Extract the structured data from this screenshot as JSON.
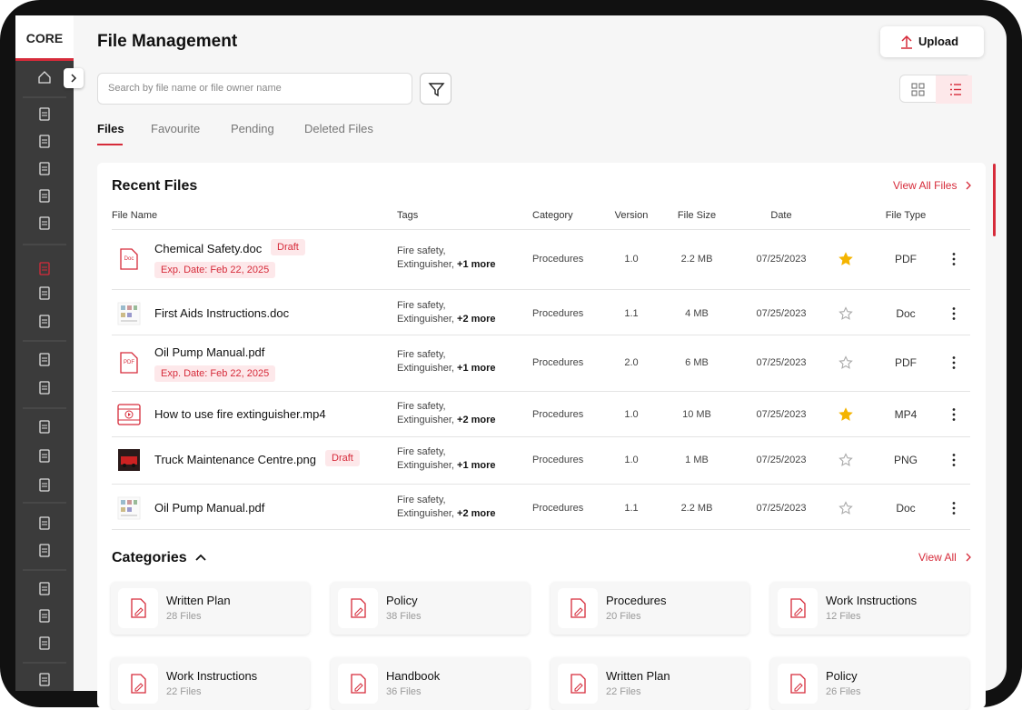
{
  "logo": "CORE",
  "header": {
    "title": "File Management",
    "upload": "Upload",
    "search_placeholder": "Search by file name or file owner name"
  },
  "tabs": {
    "items": [
      "Files",
      "Favourite",
      "Pending",
      "Deleted Files"
    ],
    "active": 0
  },
  "recent": {
    "title": "Recent Files",
    "view_all": "View All Files",
    "columns": [
      "File Name",
      "Tags",
      "Category",
      "Version",
      "File Size",
      "Date",
      "File Type"
    ],
    "rows": [
      {
        "name": "Chemical Safety.doc",
        "badge": "Draft",
        "exp": "Exp. Date: Feb 22, 2025",
        "icon": "Doc",
        "preview": "file",
        "tags": [
          "Fire safety,",
          "Extinguisher,"
        ],
        "more": "+1 more",
        "category": "Procedures",
        "version": "1.0",
        "size": "2.2 MB",
        "date": "07/25/2023",
        "starred": true,
        "type": "PDF"
      },
      {
        "name": "First Aids Instructions.doc",
        "preview": "sheet",
        "tags": [
          "Fire safety,",
          "Extinguisher,"
        ],
        "more": "+2 more",
        "category": "Procedures",
        "version": "1.1",
        "size": "4 MB",
        "date": "07/25/2023",
        "starred": false,
        "type": "Doc"
      },
      {
        "name": "Oil Pump Manual.pdf",
        "exp": "Exp. Date: Feb 22, 2025",
        "icon": "PDF",
        "preview": "file",
        "tags": [
          "Fire safety,",
          "Extinguisher,"
        ],
        "more": "+1 more",
        "category": "Procedures",
        "version": "2.0",
        "size": "6 MB",
        "date": "07/25/2023",
        "starred": false,
        "type": "PDF"
      },
      {
        "name": "How to use fire extinguisher.mp4",
        "preview": "video",
        "tags": [
          "Fire safety,",
          "Extinguisher,"
        ],
        "more": "+2 more",
        "category": "Procedures",
        "version": "1.0",
        "size": "10 MB",
        "date": "07/25/2023",
        "starred": true,
        "type": "MP4"
      },
      {
        "name": "Truck Maintenance Centre.png",
        "badge": "Draft",
        "preview": "photo",
        "tags": [
          "Fire safety,",
          "Extinguisher,"
        ],
        "more": "+1 more",
        "category": "Procedures",
        "version": "1.0",
        "size": "1 MB",
        "date": "07/25/2023",
        "starred": false,
        "type": "PNG"
      },
      {
        "name": "Oil Pump Manual.pdf",
        "preview": "sheet",
        "tags": [
          "Fire safety,",
          "Extinguisher,"
        ],
        "more": "+2 more",
        "category": "Procedures",
        "version": "1.1",
        "size": "2.2 MB",
        "date": "07/25/2023",
        "starred": false,
        "type": "Doc"
      }
    ]
  },
  "categories": {
    "title": "Categories",
    "view_all": "View All",
    "items": [
      {
        "name": "Written Plan",
        "count": "28 Files"
      },
      {
        "name": "Policy",
        "count": "38 Files"
      },
      {
        "name": "Procedures",
        "count": "20 Files"
      },
      {
        "name": "Work Instructions",
        "count": "12 Files"
      },
      {
        "name": "Work Instructions",
        "count": "22 Files"
      },
      {
        "name": "Handbook",
        "count": "36 Files"
      },
      {
        "name": "Written Plan",
        "count": "22 Files"
      },
      {
        "name": "Policy",
        "count": "26 Files"
      }
    ]
  }
}
